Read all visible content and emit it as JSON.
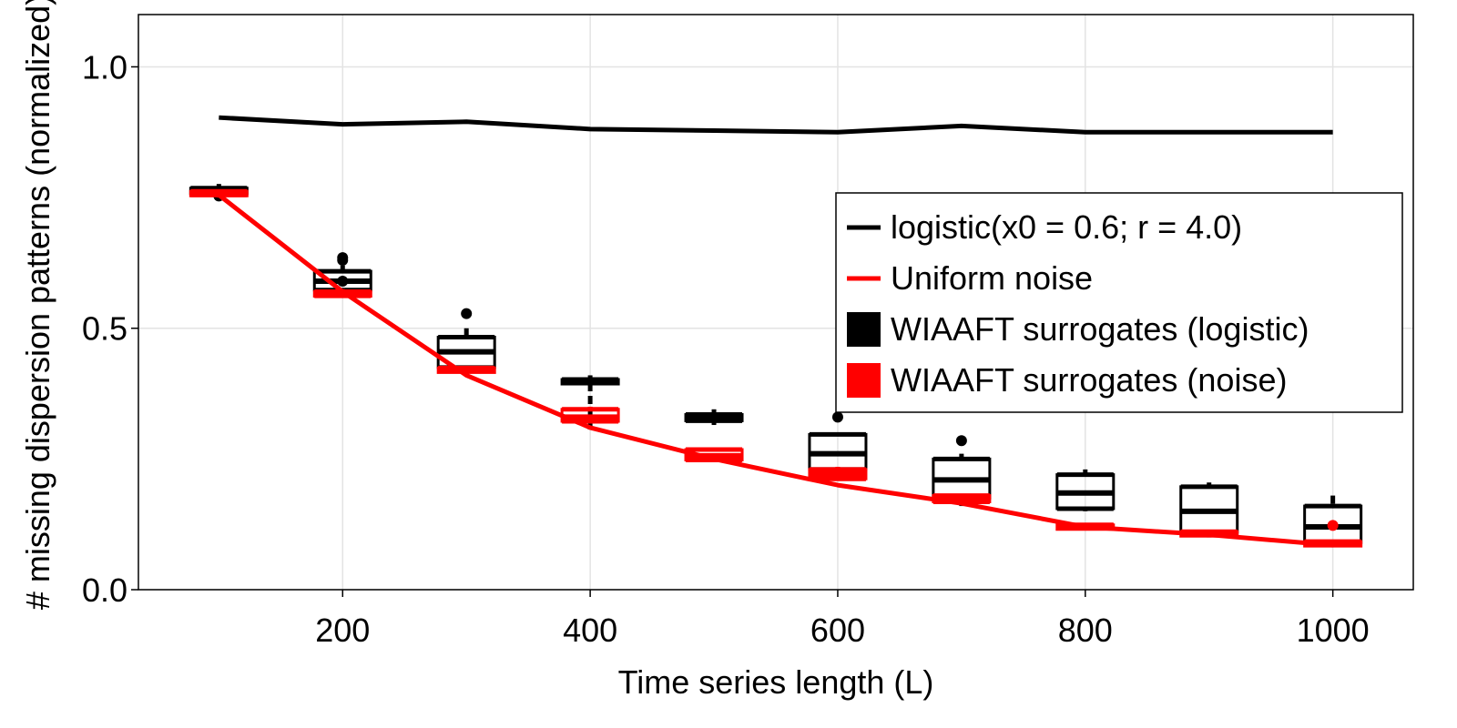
{
  "chart_data": {
    "type": "line+boxplot",
    "xlabel": "Time series length (L)",
    "ylabel": "# missing dispersion patterns (normalized)",
    "xlim": [
      35,
      1065
    ],
    "ylim": [
      0,
      1.1
    ],
    "xticks": [
      200,
      400,
      600,
      800,
      1000
    ],
    "xtick_labels": [
      "200",
      "400",
      "600",
      "800",
      "1000"
    ],
    "yticks": [
      0,
      0.5,
      1.0
    ],
    "ytick_labels": [
      "0.0",
      "0.5",
      "1.0"
    ],
    "grid": true,
    "legend_position": "right",
    "legend": [
      {
        "label": "logistic(x0 = 0.6; r = 4.0)",
        "kind": "line",
        "color": "#000000"
      },
      {
        "label": "Uniform noise",
        "kind": "line",
        "color": "#ff0000"
      },
      {
        "label": "WIAAFT surrogates (logistic)",
        "kind": "box",
        "color": "#000000"
      },
      {
        "label": "WIAAFT surrogates (noise)",
        "kind": "box",
        "color": "#ff0000"
      }
    ],
    "series": [
      {
        "name": "logistic(x0 = 0.6; r = 4.0)",
        "type": "line",
        "color": "#000000",
        "x": [
          100,
          200,
          300,
          400,
          500,
          600,
          700,
          800,
          900,
          1000
        ],
        "y": [
          0.903,
          0.89,
          0.895,
          0.881,
          0.878,
          0.875,
          0.887,
          0.875,
          0.875,
          0.875
        ]
      },
      {
        "name": "Uniform noise",
        "type": "line",
        "color": "#ff0000",
        "x": [
          100,
          200,
          300,
          400,
          500,
          600,
          700,
          800,
          900,
          1000
        ],
        "y": [
          0.755,
          0.57,
          0.41,
          0.31,
          0.25,
          0.2,
          0.165,
          0.12,
          0.105,
          0.085
        ]
      },
      {
        "name": "WIAAFT surrogates (logistic)",
        "type": "box",
        "color": "#000000",
        "boxes": [
          {
            "x": 100,
            "min": 0.755,
            "q1": 0.758,
            "median": 0.762,
            "q3": 0.768,
            "max": 0.776,
            "outliers": [
              0.753
            ]
          },
          {
            "x": 200,
            "min": 0.565,
            "q1": 0.573,
            "median": 0.59,
            "q3": 0.609,
            "max": 0.62,
            "outliers": [
              0.59,
              0.63,
              0.635
            ]
          },
          {
            "x": 300,
            "min": 0.405,
            "q1": 0.425,
            "median": 0.455,
            "q3": 0.483,
            "max": 0.5,
            "outliers": [
              0.528
            ]
          },
          {
            "x": 400,
            "min": 0.305,
            "q1": 0.395,
            "median": 0.398,
            "q3": 0.402,
            "max": 0.41,
            "outliers": []
          },
          {
            "x": 500,
            "min": 0.315,
            "q1": 0.323,
            "median": 0.33,
            "q3": 0.335,
            "max": 0.345,
            "outliers": []
          },
          {
            "x": 600,
            "min": 0.22,
            "q1": 0.23,
            "median": 0.26,
            "q3": 0.297,
            "max": 0.3,
            "outliers": [
              0.33
            ]
          },
          {
            "x": 700,
            "min": 0.16,
            "q1": 0.175,
            "median": 0.21,
            "q3": 0.25,
            "max": 0.26,
            "outliers": [
              0.285
            ]
          },
          {
            "x": 800,
            "min": 0.15,
            "q1": 0.155,
            "median": 0.185,
            "q3": 0.22,
            "max": 0.23,
            "outliers": []
          },
          {
            "x": 900,
            "min": 0.1,
            "q1": 0.11,
            "median": 0.15,
            "q3": 0.197,
            "max": 0.205,
            "outliers": []
          },
          {
            "x": 1000,
            "min": 0.085,
            "q1": 0.09,
            "median": 0.12,
            "q3": 0.16,
            "max": 0.18,
            "outliers": []
          }
        ]
      },
      {
        "name": "WIAAFT surrogates (noise)",
        "type": "box",
        "color": "#ff0000",
        "boxes": [
          {
            "x": 100,
            "min": 0.75,
            "q1": 0.755,
            "median": 0.758,
            "q3": 0.762,
            "max": 0.765,
            "outliers": []
          },
          {
            "x": 200,
            "min": 0.56,
            "q1": 0.562,
            "median": 0.566,
            "q3": 0.57,
            "max": 0.575,
            "outliers": []
          },
          {
            "x": 300,
            "min": 0.415,
            "q1": 0.418,
            "median": 0.421,
            "q3": 0.424,
            "max": 0.428,
            "outliers": []
          },
          {
            "x": 400,
            "min": 0.318,
            "q1": 0.322,
            "median": 0.33,
            "q3": 0.345,
            "max": 0.35,
            "outliers": []
          },
          {
            "x": 500,
            "min": 0.245,
            "q1": 0.248,
            "median": 0.256,
            "q3": 0.268,
            "max": 0.272,
            "outliers": []
          },
          {
            "x": 600,
            "min": 0.208,
            "q1": 0.212,
            "median": 0.221,
            "q3": 0.23,
            "max": 0.235,
            "outliers": []
          },
          {
            "x": 700,
            "min": 0.165,
            "q1": 0.168,
            "median": 0.173,
            "q3": 0.18,
            "max": 0.183,
            "outliers": []
          },
          {
            "x": 800,
            "min": 0.118,
            "q1": 0.12,
            "median": 0.122,
            "q3": 0.124,
            "max": 0.126,
            "outliers": []
          },
          {
            "x": 900,
            "min": 0.105,
            "q1": 0.107,
            "median": 0.109,
            "q3": 0.111,
            "max": 0.113,
            "outliers": []
          },
          {
            "x": 1000,
            "min": 0.087,
            "q1": 0.088,
            "median": 0.09,
            "q3": 0.092,
            "max": 0.094,
            "outliers": [
              0.123
            ]
          }
        ]
      }
    ]
  }
}
